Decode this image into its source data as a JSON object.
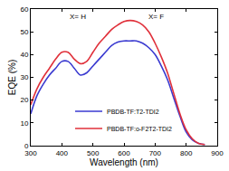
{
  "chart_data": {
    "type": "line",
    "x_label": "Wavelength (nm)",
    "y_label": "EQE (%)",
    "x": [
      300,
      320,
      340,
      360,
      380,
      400,
      420,
      440,
      460,
      480,
      500,
      520,
      540,
      560,
      580,
      600,
      620,
      640,
      660,
      680,
      700,
      720,
      740,
      760,
      780,
      800,
      820,
      840,
      860
    ],
    "series": [
      {
        "name": "PBDB-TF:T2-TDI2",
        "color": "#3a3ad0",
        "values": [
          14,
          22,
          27,
          31,
          34,
          37,
          37,
          34,
          31,
          32,
          35,
          38,
          41,
          44,
          45.5,
          46,
          46,
          46,
          45,
          43,
          40,
          35,
          29,
          21,
          13,
          6,
          2.5,
          1,
          0.5
        ]
      },
      {
        "name": "PBDB-TF:o-F2T2-TDI2",
        "color": "#e0303a",
        "values": [
          18,
          25,
          30,
          34,
          38,
          41,
          41,
          38,
          36,
          37,
          41,
          45,
          48,
          51,
          53,
          54.5,
          55,
          54.5,
          53,
          50,
          45,
          39,
          32,
          23,
          14,
          7,
          3,
          1,
          0.5
        ]
      }
    ],
    "xlim": [
      300,
      900
    ],
    "xticks": [
      300,
      400,
      500,
      600,
      700,
      800,
      900
    ],
    "ylim": [
      0,
      60
    ],
    "yticks": [
      0,
      10,
      20,
      30,
      40,
      50,
      60
    ],
    "legend": "bottom",
    "grid": false,
    "annotations": [
      "X= H",
      "X= F"
    ]
  }
}
